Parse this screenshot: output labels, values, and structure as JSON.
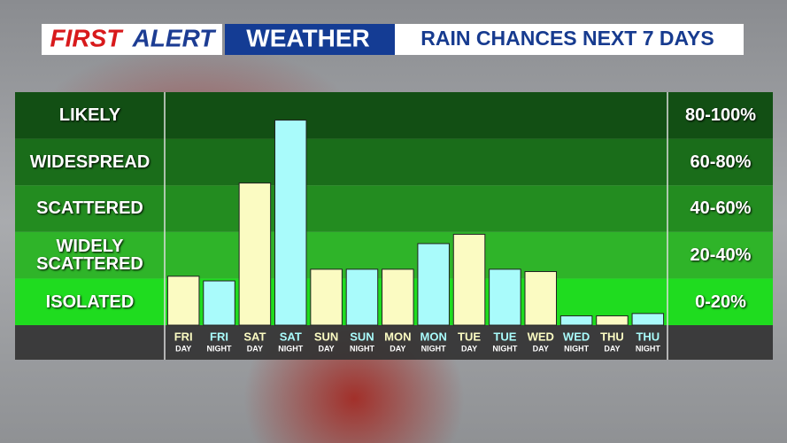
{
  "chart_data": {
    "type": "bar",
    "brand": [
      "FIRST",
      "ALERT"
    ],
    "banner": "WEATHER",
    "title": "RAIN CHANCES NEXT 7 DAYS",
    "categories": [
      "FRI",
      "FRI",
      "SAT",
      "SAT",
      "SUN",
      "SUN",
      "MON",
      "MON",
      "TUE",
      "TUE",
      "WED",
      "WED",
      "THU",
      "THU"
    ],
    "periods": [
      "DAY",
      "NIGHT",
      "DAY",
      "NIGHT",
      "DAY",
      "NIGHT",
      "DAY",
      "NIGHT",
      "DAY",
      "NIGHT",
      "DAY",
      "NIGHT",
      "DAY",
      "NIGHT"
    ],
    "values": [
      21,
      19,
      61,
      88,
      24,
      24,
      24,
      35,
      39,
      24,
      23,
      4,
      4,
      5
    ],
    "colors": [
      "#fbfbc2",
      "#a9fbfb",
      "#fbfbc2",
      "#a9fbfb",
      "#fbfbc2",
      "#a9fbfb",
      "#fbfbc2",
      "#a9fbfb",
      "#fbfbc2",
      "#a9fbfb",
      "#fbfbc2",
      "#a9fbfb",
      "#fbfbc2",
      "#a9fbfb"
    ],
    "ylim": [
      0,
      100
    ],
    "bands": [
      {
        "label": "LIKELY",
        "range": "80-100%",
        "from": 80,
        "to": 100,
        "color": "#124f14"
      },
      {
        "label": "WIDESPREAD",
        "range": "60-80%",
        "from": 60,
        "to": 80,
        "color": "#1a6d1a"
      },
      {
        "label": "SCATTERED",
        "range": "40-60%",
        "from": 40,
        "to": 60,
        "color": "#238c20"
      },
      {
        "label": "WIDELY SCATTERED",
        "range": "20-40%",
        "from": 20,
        "to": 40,
        "color": "#2fb429"
      },
      {
        "label": "ISOLATED",
        "range": "0-20%",
        "from": 0,
        "to": 20,
        "color": "#1fdc1f"
      }
    ]
  }
}
